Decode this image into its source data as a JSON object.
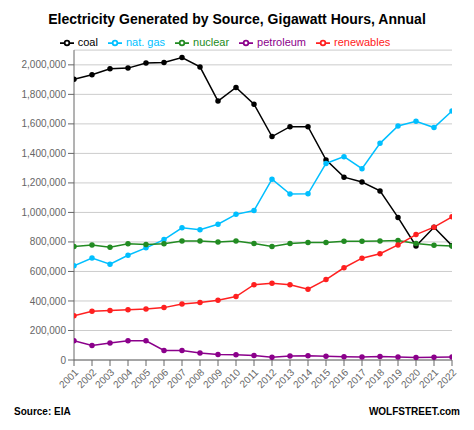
{
  "chart_data": {
    "type": "line",
    "title": "Electricity Generated by Source, Gigawatt Hours, Annual",
    "annotations": [
      "Source: EIA",
      "WOLFSTREET.com"
    ],
    "x": [
      2001,
      2002,
      2003,
      2004,
      2005,
      2006,
      2007,
      2008,
      2009,
      2010,
      2011,
      2012,
      2013,
      2014,
      2015,
      2016,
      2017,
      2018,
      2019,
      2020,
      2021,
      2022
    ],
    "series": [
      {
        "name": "coal",
        "color": "#000000",
        "marker": "circle",
        "values": [
          1903000,
          1933000,
          1973000,
          1978000,
          2013000,
          2016000,
          2050000,
          1986000,
          1755000,
          1847000,
          1733000,
          1514000,
          1581000,
          1581000,
          1356000,
          1239000,
          1206000,
          1146000,
          966000,
          773000,
          899000,
          775000
        ]
      },
      {
        "name": "nat. gas",
        "color": "#00bfff",
        "marker": "circle",
        "values": [
          639000,
          691000,
          649000,
          710000,
          760000,
          816000,
          896000,
          882000,
          920000,
          987000,
          1013000,
          1225000,
          1125000,
          1126000,
          1332000,
          1378000,
          1296000,
          1468000,
          1586000,
          1617000,
          1575000,
          1687000
        ]
      },
      {
        "name": "nuclear",
        "color": "#228B22",
        "marker": "circle",
        "values": [
          769000,
          780000,
          764000,
          788000,
          782000,
          787000,
          806000,
          806000,
          799000,
          807000,
          790000,
          769000,
          789000,
          797000,
          797000,
          805000,
          805000,
          807000,
          809000,
          790000,
          778000,
          772000
        ]
      },
      {
        "name": "renewables",
        "color": "#ff2020",
        "marker": "circle",
        "values": [
          300000,
          330000,
          335000,
          340000,
          345000,
          355000,
          380000,
          390000,
          405000,
          430000,
          510000,
          520000,
          510000,
          480000,
          545000,
          625000,
          690000,
          720000,
          780000,
          850000,
          900000,
          970000
        ]
      },
      {
        "name": "petroleum",
        "color": "#8B008B",
        "marker": "circle",
        "values": [
          130000,
          98000,
          115000,
          130000,
          130000,
          65000,
          65000,
          47000,
          37000,
          36000,
          30000,
          18000,
          27000,
          28000,
          25000,
          22000,
          21000,
          24000,
          20000,
          17000,
          18000,
          20000
        ]
      }
    ],
    "xlim": [
      2001,
      2022
    ],
    "xticks": [
      2001,
      2002,
      2003,
      2004,
      2005,
      2006,
      2007,
      2008,
      2009,
      2010,
      2011,
      2012,
      2013,
      2014,
      2015,
      2016,
      2017,
      2018,
      2019,
      2020,
      2021,
      2022
    ],
    "ylim": [
      0,
      2100000
    ],
    "yticks": [
      0,
      {
        "value": 200000,
        "label": "200,000"
      },
      {
        "value": 400000,
        "label": "400,000"
      },
      {
        "value": 600000,
        "label": "600,000"
      },
      {
        "value": 800000,
        "label": "800,000"
      },
      {
        "value": 1000000,
        "label": "1,000,000"
      },
      {
        "value": 1200000,
        "label": "1,200,000"
      },
      {
        "value": 1400000,
        "label": "1,400,000"
      },
      {
        "value": 1600000,
        "label": "1,600,000"
      },
      {
        "value": 1800000,
        "label": "1,800,000"
      },
      {
        "value": 2000000,
        "label": "2,000,000"
      }
    ],
    "grid": true,
    "legend": "top"
  }
}
